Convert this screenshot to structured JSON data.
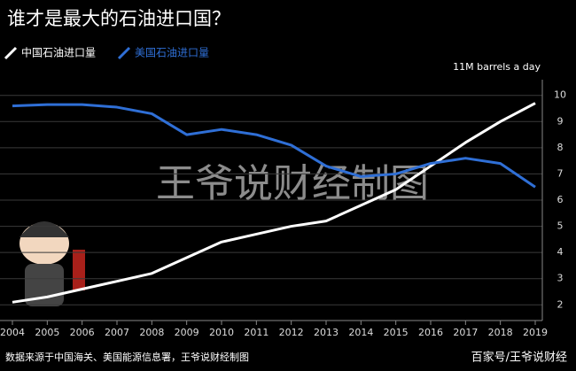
{
  "chart_data": {
    "type": "line",
    "title": "谁才是最大的石油进口国？",
    "unit_label": "11M barrels a day",
    "watermark": "王爷说财经制图",
    "source": "数据来源于中国海关、美国能源信息署，王爷说财经制图",
    "credit": "百家号/王爷说财经",
    "x": [
      2004,
      2005,
      2006,
      2007,
      2008,
      2009,
      2010,
      2011,
      2012,
      2013,
      2014,
      2015,
      2016,
      2017,
      2018,
      2019
    ],
    "xlim": [
      2004,
      2019
    ],
    "xticks": [
      2004,
      2005,
      2006,
      2007,
      2008,
      2009,
      2010,
      2011,
      2012,
      2013,
      2014,
      2015,
      2016,
      2017,
      2018,
      2019
    ],
    "ylim": [
      1.4,
      10.6
    ],
    "yticks": [
      2,
      3,
      4,
      5,
      6,
      7,
      8,
      9,
      10
    ],
    "grid": true,
    "series": [
      {
        "name": "中国石油进口量",
        "color": "#ffffff",
        "values": [
          2.1,
          2.3,
          2.6,
          2.9,
          3.2,
          3.8,
          4.4,
          4.7,
          5.0,
          5.2,
          5.8,
          6.4,
          7.3,
          8.2,
          9.0,
          9.7
        ]
      },
      {
        "name": "美国石油进口量",
        "color": "#2f6fd6",
        "values": [
          9.6,
          9.65,
          9.65,
          9.55,
          9.3,
          8.5,
          8.7,
          8.5,
          8.1,
          7.3,
          6.9,
          7.0,
          7.4,
          7.6,
          7.4,
          6.5
        ]
      }
    ]
  }
}
